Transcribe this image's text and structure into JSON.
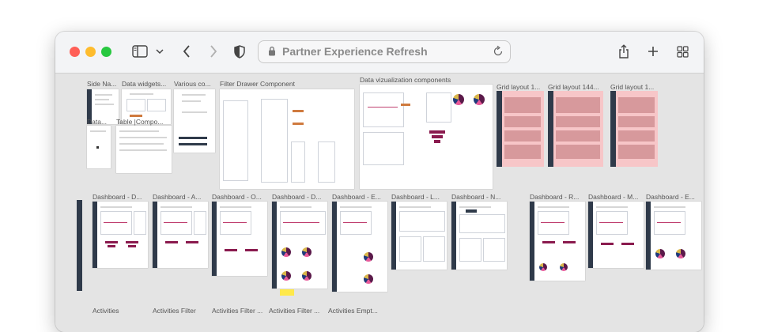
{
  "browser": {
    "title": "Partner Experience Refresh",
    "controls": [
      "close-dot",
      "minimize-dot",
      "maximize-dot"
    ]
  },
  "toolbar_icons": [
    "sidebar-icon",
    "chevron-down-icon",
    "back-arrow-icon",
    "forward-arrow-icon",
    "shield-icon",
    "lock-icon",
    "reload-icon",
    "share-icon",
    "plus-icon",
    "tabs-grid-icon"
  ],
  "row1_labels": [
    "Side Na...",
    "Data widgets...",
    "Various co...",
    "Filter Drawer Component",
    "Data vizualization components",
    "Grid layout 1...",
    "Grid layout 144...",
    "Grid layout 1..."
  ],
  "row1b_labels": [
    "Data...",
    "Table |Compo..."
  ],
  "row2_labels": [
    "Dashboard - D...",
    "Dashboard - A...",
    "Dashboard - O...",
    "Dashboard - D...",
    "Dashboard - E...",
    "Dashboard - L...",
    "Dashboard - N...",
    "Dashboard - R...",
    "Dashboard - M...",
    "Dashboard - E..."
  ],
  "row3_labels": [
    "Activities",
    "Activities Filter",
    "Activities Filter ...",
    "Activities Filter ...",
    "Activities Empt..."
  ],
  "colors": {
    "sidebar_dark": "#2f3a4a",
    "accent_orange": "#cf7a3e",
    "accent_plum": "#8a1a4e",
    "grid_pink": "#f7c6c8"
  }
}
